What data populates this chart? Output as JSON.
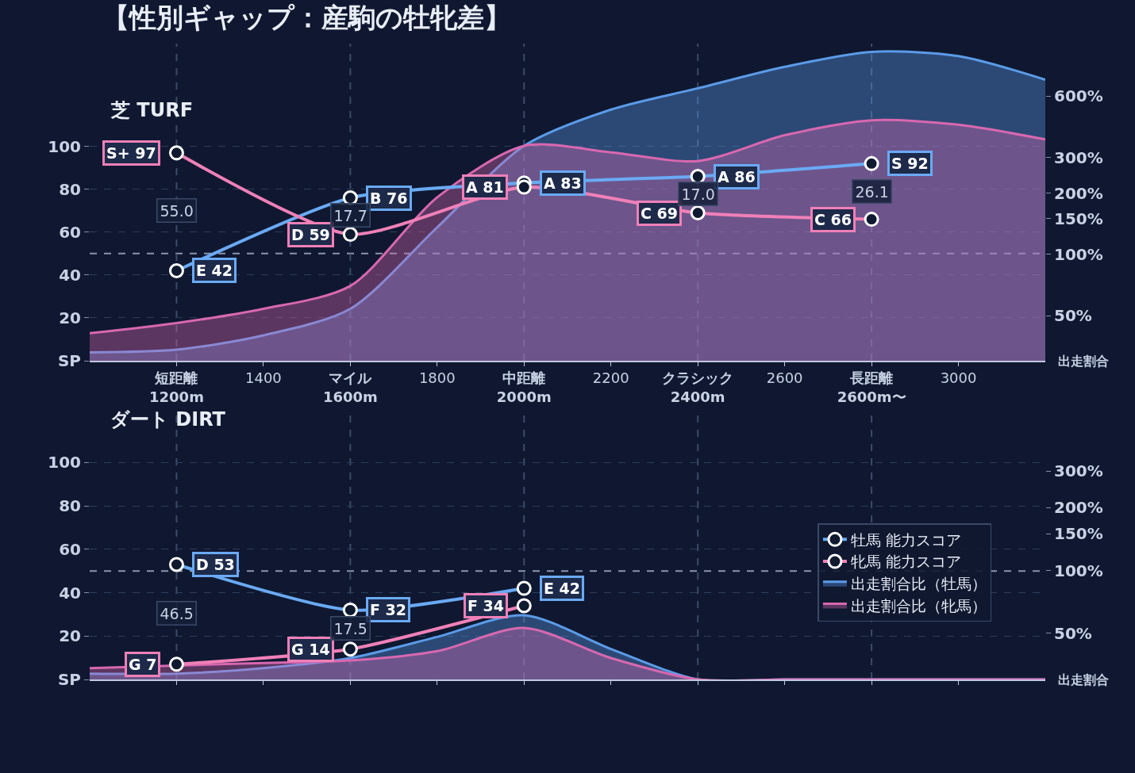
{
  "chart_data": [
    {
      "type": "line",
      "title": "【性別ギャップ：産駒の牡牝差】",
      "subtitle": "芝 TURF",
      "y2label": "出走割合",
      "xlim": [
        1000,
        3200
      ],
      "xticks": [
        {
          "value": 1200,
          "label": "短距離\n1200m"
        },
        1400,
        {
          "value": 1600,
          "label": "マイル\n1600m"
        },
        1800,
        {
          "value": 2000,
          "label": "中距離\n2000m"
        },
        2200,
        {
          "value": 2400,
          "label": "クラシック\n2400m"
        },
        2600,
        {
          "value": 2800,
          "label": "長距離\n2600m〜"
        },
        3000
      ],
      "ylim": [
        0,
        148
      ],
      "yticks": [
        {
          "value": 0,
          "label": "SP"
        },
        20,
        40,
        60,
        80,
        100
      ],
      "log": "y2",
      "y2lim": [
        30,
        1090
      ],
      "y2ticks": [
        {
          "value": 50,
          "label": "50%"
        },
        {
          "value": 100,
          "label": "100%"
        },
        {
          "value": 150,
          "label": "150%"
        },
        {
          "value": 200,
          "label": "200%"
        },
        {
          "value": 300,
          "label": "300%"
        },
        {
          "value": 600,
          "label": "600%"
        }
      ],
      "grid": "y",
      "ref_lines": [
        {
          "axis": "y",
          "value": 50,
          "label": null,
          "color": "#8a94aa",
          "line_style": "dashed"
        },
        {
          "axis": "x",
          "value": 1200,
          "label": null,
          "color": "#3c4a68",
          "line_style": "dashed"
        },
        {
          "axis": "x",
          "value": 1600,
          "label": null,
          "color": "#3c4a68",
          "line_style": "dashed"
        },
        {
          "axis": "x",
          "value": 2000,
          "label": null,
          "color": "#3c4a68",
          "line_style": "dashed"
        },
        {
          "axis": "x",
          "value": 2400,
          "label": null,
          "color": "#3c4a68",
          "line_style": "dashed"
        },
        {
          "axis": "x",
          "value": 2800,
          "label": null,
          "color": "#3c4a68",
          "line_style": "dashed"
        }
      ],
      "annotations": [
        {
          "text": "55.0",
          "x": 1200,
          "y": 70
        },
        {
          "text": "17.7",
          "x": 1600,
          "y": 68
        },
        {
          "text": "17.0",
          "x": 2400,
          "y": 78
        },
        {
          "text": "26.1",
          "x": 2800,
          "y": 79
        }
      ],
      "series": [
        {
          "type": "area",
          "axis": "y2",
          "color": "#5b9be8",
          "x": [
            1000,
            1200,
            1400,
            1600,
            1800,
            2000,
            2200,
            2400,
            2600,
            2800,
            3000,
            3200
          ],
          "values": [
            33,
            34,
            40,
            54,
            136,
            342,
            516,
            657,
            838,
            993,
            946,
            724
          ]
        },
        {
          "type": "area",
          "axis": "y2",
          "color": "#d868b0",
          "x": [
            1000,
            1200,
            1400,
            1600,
            1800,
            2000,
            2200,
            2400,
            2600,
            2800,
            3000,
            3200
          ],
          "values": [
            41,
            46,
            54,
            70,
            191,
            342,
            318,
            288,
            386,
            457,
            435,
            368
          ]
        },
        {
          "type": "line",
          "marker": "circle",
          "color": "#6aaaf5",
          "x": [
            1200,
            1600,
            2000,
            2400,
            2800
          ],
          "values": [
            42,
            76,
            83,
            86,
            92
          ],
          "value_labels": [
            "E 42",
            "B 76",
            "A 83",
            "A 86",
            "S 92"
          ]
        },
        {
          "type": "line",
          "marker": "circle",
          "color": "#f080b8",
          "x": [
            1200,
            1600,
            2000,
            2400,
            2800
          ],
          "values": [
            97,
            59,
            81,
            69,
            66
          ],
          "value_labels": [
            "S+ 97",
            "D 59",
            "A 81",
            "C 69",
            "C 66"
          ]
        }
      ]
    },
    {
      "type": "line",
      "title": "ダート DIRT",
      "y2label": "出走割合",
      "xlim": [
        1000,
        3200
      ],
      "xticks": [
        1200,
        1400,
        1600,
        1800,
        2000,
        2200,
        2400,
        2600,
        2800,
        3000
      ],
      "ylim": [
        0,
        125
      ],
      "yticks": [
        {
          "value": 0,
          "label": "SP"
        },
        20,
        40,
        60,
        80,
        100
      ],
      "log": "y2",
      "y2lim": [
        30,
        600
      ],
      "y2ticks": [
        {
          "value": 50,
          "label": "50%"
        },
        {
          "value": 100,
          "label": "100%"
        },
        {
          "value": 150,
          "label": "150%"
        },
        {
          "value": 200,
          "label": "200%"
        },
        {
          "value": 300,
          "label": "300%"
        }
      ],
      "grid": "y",
      "tick_labels": "y",
      "legend": "right",
      "ref_lines": [
        {
          "axis": "y",
          "value": 50,
          "label": null,
          "color": "#8a94aa",
          "line_style": "dashed"
        },
        {
          "axis": "x",
          "value": 1200,
          "label": null,
          "color": "#3c4a68",
          "line_style": "dashed"
        },
        {
          "axis": "x",
          "value": 1600,
          "label": null,
          "color": "#3c4a68",
          "line_style": "dashed"
        },
        {
          "axis": "x",
          "value": 2000,
          "label": null,
          "color": "#3c4a68",
          "line_style": "dashed"
        },
        {
          "axis": "x",
          "value": 2400,
          "label": null,
          "color": "#3c4a68",
          "line_style": "dashed"
        },
        {
          "axis": "x",
          "value": 2800,
          "label": null,
          "color": "#3c4a68",
          "line_style": "dashed"
        }
      ],
      "annotations": [
        {
          "text": "46.5",
          "x": 1200,
          "y": 30.5
        },
        {
          "text": "17.5",
          "x": 1600,
          "y": 23.5
        }
      ],
      "series": [
        {
          "type": "line",
          "marker": "circle",
          "name": "牡馬 能力スコア",
          "color": "#6aaaf5",
          "x": [
            1200,
            1600,
            2000
          ],
          "values": [
            53,
            32,
            42
          ],
          "value_labels": [
            "D 53",
            "F 32",
            "E 42"
          ]
        },
        {
          "type": "line",
          "marker": "circle",
          "name": "牝馬 能力スコア",
          "color": "#f080b8",
          "x": [
            1200,
            1600,
            2000
          ],
          "values": [
            7,
            14,
            34
          ],
          "value_labels": [
            "G 7",
            "G 14",
            "F 34"
          ]
        },
        {
          "type": "area",
          "axis": "y2",
          "name": "出走割合比（牡馬）",
          "color": "#5b9be8",
          "x": [
            1000,
            1200,
            1400,
            1600,
            1800,
            2000,
            2200,
            2400,
            2600,
            2800,
            3000,
            3200
          ],
          "values": [
            32,
            32,
            34,
            38,
            48,
            61,
            42,
            30,
            30,
            30,
            30,
            30
          ]
        },
        {
          "type": "area",
          "axis": "y2",
          "name": "出走割合比（牝馬）",
          "color": "#d868b0",
          "x": [
            1000,
            1200,
            1400,
            1600,
            1800,
            2000,
            2200,
            2400,
            2600,
            2800,
            3000,
            3200
          ],
          "values": [
            34,
            35,
            36,
            37,
            41,
            53,
            38,
            30,
            30,
            30,
            30,
            30
          ]
        }
      ]
    }
  ]
}
